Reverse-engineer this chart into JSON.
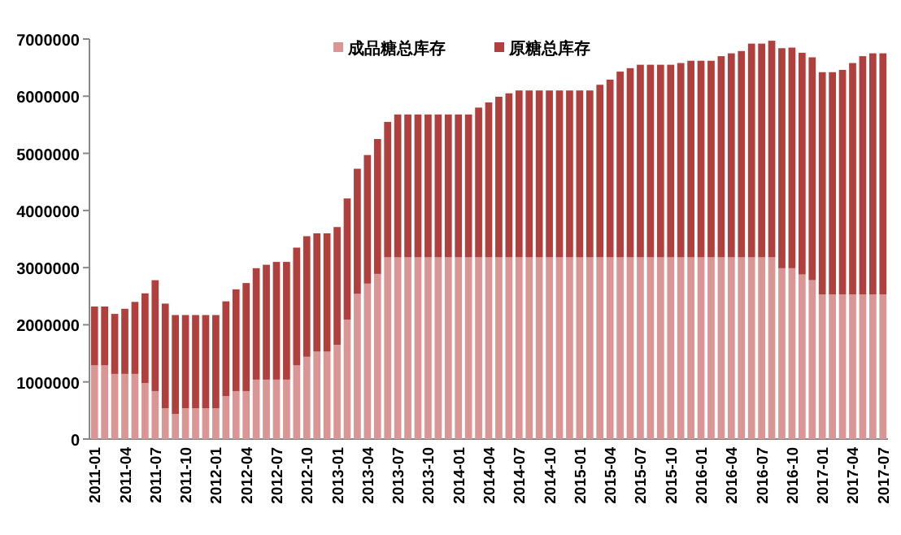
{
  "chart_data": {
    "type": "bar",
    "stacked": true,
    "legend": "top",
    "grid": false,
    "categories": [
      "2011-01",
      null,
      null,
      "2011-04",
      null,
      null,
      "2011-07",
      null,
      null,
      "2011-10",
      null,
      null,
      "2012-01",
      null,
      null,
      "2012-04",
      null,
      null,
      "2012-07",
      null,
      null,
      "2012-10",
      null,
      null,
      "2013-01",
      null,
      null,
      "2013-04",
      null,
      null,
      "2013-07",
      null,
      null,
      "2013-10",
      null,
      null,
      "2014-01",
      null,
      null,
      "2014-04",
      null,
      null,
      "2014-07",
      null,
      null,
      "2014-10",
      null,
      null,
      "2015-01",
      null,
      null,
      "2015-04",
      null,
      null,
      "2015-07",
      null,
      null,
      "2015-10",
      null,
      null,
      "2016-01",
      null,
      null,
      "2016-04",
      null,
      null,
      "2016-07",
      null,
      null,
      "2016-10",
      null,
      null,
      "2017-01",
      null,
      null,
      "2017-04",
      null,
      null,
      "2017-07"
    ],
    "ylim": [
      0,
      7000000
    ],
    "yticks": [
      0,
      1000000,
      2000000,
      3000000,
      4000000,
      5000000,
      6000000,
      7000000
    ],
    "series": [
      {
        "name": "成品糖总库存",
        "color": "#d99694",
        "values": [
          1290000,
          1290000,
          1140000,
          1140000,
          1140000,
          980000,
          840000,
          540000,
          440000,
          540000,
          540000,
          540000,
          540000,
          750000,
          840000,
          840000,
          1040000,
          1040000,
          1040000,
          1040000,
          1290000,
          1440000,
          1530000,
          1530000,
          1650000,
          2090000,
          2540000,
          2720000,
          2890000,
          3180000,
          3180000,
          3180000,
          3180000,
          3180000,
          3180000,
          3180000,
          3180000,
          3180000,
          3180000,
          3180000,
          3180000,
          3180000,
          3180000,
          3180000,
          3180000,
          3180000,
          3180000,
          3180000,
          3180000,
          3180000,
          3180000,
          3180000,
          3180000,
          3180000,
          3180000,
          3180000,
          3180000,
          3180000,
          3180000,
          3180000,
          3180000,
          3180000,
          3180000,
          3180000,
          3180000,
          3180000,
          3180000,
          3180000,
          2990000,
          2990000,
          2880000,
          2780000,
          2530000,
          2530000,
          2530000,
          2530000,
          2530000,
          2530000,
          2530000
        ]
      },
      {
        "name": "原糖总库存",
        "color": "#b0403d",
        "values": [
          1030000,
          1030000,
          1050000,
          1140000,
          1260000,
          1570000,
          1940000,
          1830000,
          1730000,
          1630000,
          1630000,
          1630000,
          1630000,
          1660000,
          1780000,
          1890000,
          1950000,
          2010000,
          2060000,
          2060000,
          2060000,
          2110000,
          2070000,
          2070000,
          2060000,
          2120000,
          2190000,
          2250000,
          2360000,
          2370000,
          2500000,
          2500000,
          2500000,
          2500000,
          2500000,
          2500000,
          2500000,
          2500000,
          2620000,
          2710000,
          2810000,
          2870000,
          2920000,
          2920000,
          2920000,
          2920000,
          2920000,
          2920000,
          2920000,
          2920000,
          3020000,
          3110000,
          3250000,
          3310000,
          3370000,
          3370000,
          3370000,
          3370000,
          3400000,
          3440000,
          3440000,
          3440000,
          3520000,
          3570000,
          3610000,
          3740000,
          3740000,
          3790000,
          3850000,
          3860000,
          3880000,
          3900000,
          3890000,
          3890000,
          3930000,
          4050000,
          4170000,
          4220000,
          4220000
        ]
      }
    ]
  }
}
